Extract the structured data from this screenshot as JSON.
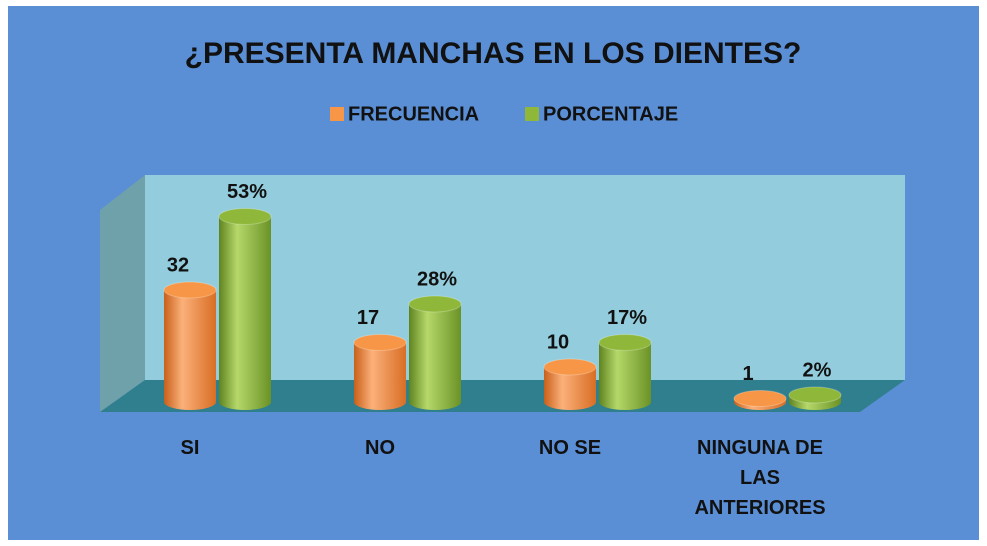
{
  "chart_data": {
    "type": "bar3d",
    "title": "¿PRESENTA MANCHAS EN LOS DIENTES?",
    "categories": [
      "SI",
      "NO",
      "NO SE",
      "NINGUNA DE LAS ANTERIORES"
    ],
    "series": [
      {
        "name": "FRECUENCIA",
        "color": "#f79646",
        "values": [
          32,
          17,
          10,
          1
        ]
      },
      {
        "name": "PORCENTAJE",
        "color": "#8fb83a",
        "values": [
          53,
          28,
          17,
          2
        ],
        "value_labels": [
          "53%",
          "28%",
          "17%",
          "2%"
        ]
      }
    ],
    "legend": "top"
  }
}
